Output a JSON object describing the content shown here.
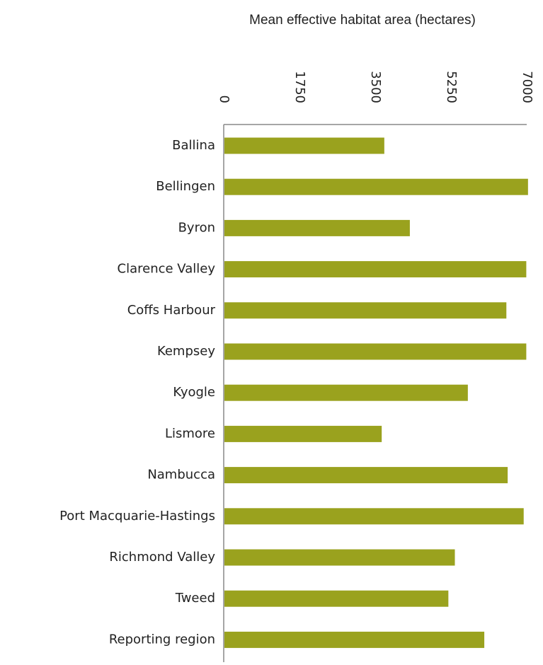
{
  "chart_data": {
    "type": "bar",
    "orientation": "horizontal",
    "title": "Mean effective habitat area (hectares)",
    "xlabel": "",
    "ylabel": "",
    "xlim": [
      0,
      7000
    ],
    "ticks": [
      "0",
      "1750",
      "3500",
      "5250",
      "7000"
    ],
    "tick_values": [
      0,
      1750,
      3500,
      5250,
      7000
    ],
    "categories": [
      "Ballina",
      "Bellingen",
      "Byron",
      "Clarence Valley",
      "Coffs Harbour",
      "Kempsey",
      "Kyogle",
      "Lismore",
      "Nambucca",
      "Port Macquarie-Hastings",
      "Richmond Valley",
      "Tweed",
      "Reporting region"
    ],
    "values": [
      3710,
      7030,
      4300,
      6990,
      6530,
      6990,
      5640,
      3650,
      6560,
      6930,
      5340,
      5190,
      6020
    ],
    "bar_color": "#9aa21e",
    "grid": false,
    "legend": "none"
  }
}
